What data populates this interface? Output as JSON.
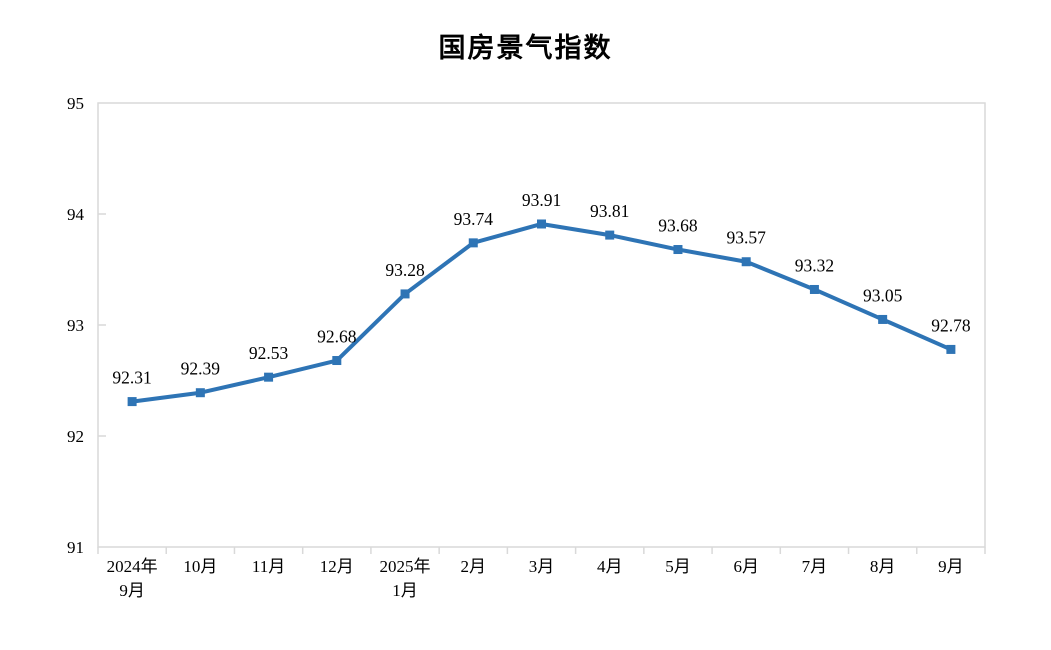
{
  "chart_data": {
    "type": "line",
    "title": "国房景气指数",
    "categories": [
      "2024年\n9月",
      "10月",
      "11月",
      "12月",
      "2025年\n1月",
      "2月",
      "3月",
      "4月",
      "5月",
      "6月",
      "7月",
      "8月",
      "9月"
    ],
    "values": [
      92.31,
      92.39,
      92.53,
      92.68,
      93.28,
      93.74,
      93.91,
      93.81,
      93.68,
      93.57,
      93.32,
      93.05,
      92.78
    ],
    "labels": [
      "92.31",
      "92.39",
      "92.53",
      "92.68",
      "93.28",
      "93.74",
      "93.91",
      "93.81",
      "93.68",
      "93.57",
      "93.32",
      "93.05",
      "92.78"
    ],
    "xlabel": "",
    "ylabel": "",
    "ylim": [
      91,
      95
    ],
    "ytick_step": 1,
    "yticks": [
      "91",
      "92",
      "93",
      "94",
      "95"
    ],
    "grid": false,
    "legend_position": "none",
    "marker": "square",
    "line_color": "#2E74B5",
    "axis_color": "#D9D9D9",
    "text_color": "#000000"
  }
}
